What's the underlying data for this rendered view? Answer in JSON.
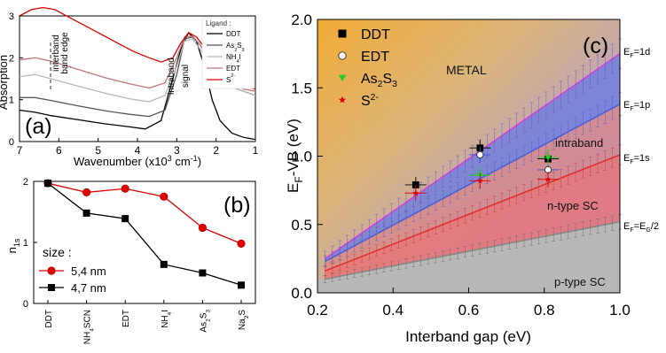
{
  "chart_data": [
    {
      "panel": "(a)",
      "type": "line",
      "xlabel": "Wavenumber (x10",
      "xlabel_sup": "3",
      "xlabel_unit": " cm",
      "xlabel_sup2": "-1",
      "xlabel_end": ")",
      "ylabel": "Absorption",
      "xlim": [
        7,
        1
      ],
      "ylim": [
        0,
        3
      ],
      "xticks": [
        "7",
        "6",
        "5",
        "4",
        "3",
        "2",
        "1"
      ],
      "yticks": [
        "0",
        "1",
        "2",
        "3"
      ],
      "annotations": [
        "interband",
        "band edge",
        "intraband",
        "signal"
      ],
      "legend_title": "Ligand :",
      "series": [
        {
          "name": "DDT",
          "color": "#000000",
          "points": [
            [
              7,
              0.75
            ],
            [
              6.6,
              0.7
            ],
            [
              6.2,
              0.62
            ],
            [
              5.5,
              0.52
            ],
            [
              4.8,
              0.42
            ],
            [
              4.2,
              0.35
            ],
            [
              3.8,
              0.3
            ],
            [
              3.4,
              0.5
            ],
            [
              3.1,
              1.5
            ],
            [
              2.9,
              2.2
            ],
            [
              2.7,
              2.6
            ],
            [
              2.5,
              2.4
            ],
            [
              2.3,
              1.8
            ],
            [
              2.1,
              1.0
            ],
            [
              1.9,
              0.5
            ],
            [
              1.6,
              0.2
            ],
            [
              1.3,
              0.1
            ],
            [
              1.0,
              0.05
            ]
          ]
        },
        {
          "name": "As2S3",
          "color": "#555555",
          "points": [
            [
              7,
              1.05
            ],
            [
              6.6,
              1.05
            ],
            [
              6.2,
              0.98
            ],
            [
              5.5,
              0.85
            ],
            [
              4.8,
              0.73
            ],
            [
              4.2,
              0.65
            ],
            [
              3.7,
              0.6
            ],
            [
              3.3,
              0.75
            ],
            [
              3.0,
              1.6
            ],
            [
              2.8,
              2.45
            ],
            [
              2.6,
              2.5
            ],
            [
              2.4,
              2.3
            ],
            [
              2.2,
              2.0
            ],
            [
              2.0,
              1.8
            ],
            [
              1.8,
              1.5
            ],
            [
              1.6,
              1.3
            ],
            [
              1.3,
              1.2
            ],
            [
              1.0,
              1.1
            ]
          ]
        },
        {
          "name": "NH4I",
          "color": "#b8b8b8",
          "points": [
            [
              7,
              1.55
            ],
            [
              6.6,
              1.6
            ],
            [
              6.2,
              1.5
            ],
            [
              5.5,
              1.32
            ],
            [
              4.8,
              1.15
            ],
            [
              4.2,
              1.02
            ],
            [
              3.7,
              0.95
            ],
            [
              3.3,
              1.1
            ],
            [
              3.0,
              1.8
            ],
            [
              2.8,
              2.4
            ],
            [
              2.6,
              2.45
            ],
            [
              2.4,
              2.2
            ],
            [
              2.2,
              1.95
            ],
            [
              2.0,
              1.75
            ],
            [
              1.8,
              1.5
            ],
            [
              1.6,
              1.3
            ],
            [
              1.3,
              1.2
            ],
            [
              1.0,
              1.1
            ]
          ]
        },
        {
          "name": "EDT",
          "color": "#c07878",
          "points": [
            [
              7,
              1.95
            ],
            [
              6.6,
              2.0
            ],
            [
              6.2,
              1.92
            ],
            [
              5.5,
              1.72
            ],
            [
              4.8,
              1.52
            ],
            [
              4.2,
              1.38
            ],
            [
              3.7,
              1.28
            ],
            [
              3.3,
              1.4
            ],
            [
              3.0,
              2.0
            ],
            [
              2.8,
              2.5
            ],
            [
              2.6,
              2.52
            ],
            [
              2.4,
              2.3
            ],
            [
              2.2,
              2.05
            ],
            [
              2.0,
              1.85
            ],
            [
              1.8,
              1.6
            ],
            [
              1.6,
              1.4
            ],
            [
              1.3,
              1.25
            ],
            [
              1.0,
              1.2
            ]
          ]
        },
        {
          "name": "S2-",
          "color": "#e00000",
          "points": [
            [
              7,
              3.0
            ],
            [
              6.7,
              3.15
            ],
            [
              6.4,
              3.25
            ],
            [
              6.1,
              3.15
            ],
            [
              5.7,
              2.95
            ],
            [
              5.3,
              2.75
            ],
            [
              4.9,
              2.55
            ],
            [
              4.5,
              2.35
            ],
            [
              4.1,
              2.15
            ],
            [
              3.7,
              2.0
            ],
            [
              3.4,
              1.9
            ],
            [
              3.1,
              2.0
            ],
            [
              2.9,
              2.35
            ],
            [
              2.7,
              2.6
            ],
            [
              2.5,
              2.5
            ],
            [
              2.3,
              2.25
            ],
            [
              2.1,
              2.05
            ],
            [
              1.9,
              1.8
            ],
            [
              1.7,
              1.55
            ],
            [
              1.5,
              1.4
            ],
            [
              1.2,
              1.3
            ],
            [
              1.0,
              1.25
            ]
          ]
        }
      ]
    },
    {
      "panel": "(b)",
      "type": "line",
      "ylabel": "n",
      "ylabel_sub": "1s",
      "ylim": [
        0,
        2
      ],
      "yticks": [
        "0",
        "1",
        "2"
      ],
      "categories": [
        "DDT",
        "NH4SCN",
        "EDT",
        "NH4I",
        "As2S3",
        "Na2S"
      ],
      "legend_title": "size :",
      "series": [
        {
          "name": "5,4 nm",
          "color": "#e00000",
          "values": [
            1.97,
            1.82,
            1.88,
            1.75,
            1.24,
            0.98
          ]
        },
        {
          "name": "4,7 nm",
          "color": "#000000",
          "values": [
            1.97,
            1.48,
            1.39,
            0.64,
            0.5,
            0.3
          ]
        }
      ]
    },
    {
      "panel": "(c)",
      "type": "scatter",
      "xlabel": "Interband gap (eV)",
      "ylabel": "E",
      "ylabel_sub": "F",
      "ylabel_end": "-VB (eV)",
      "xlim": [
        0.2,
        1.0
      ],
      "ylim": [
        0.0,
        2.0
      ],
      "xticks": [
        "0.2",
        "0.4",
        "0.6",
        "0.8",
        "1.0"
      ],
      "yticks": [
        "0.0",
        "0.5",
        "1.0",
        "1.5",
        "2.0"
      ],
      "region_labels": [
        "METAL",
        "intraband",
        "n-type SC",
        "p-type SC"
      ],
      "line_labels": [
        {
          "main": "E",
          "sub": "F",
          "tail": "=1d"
        },
        {
          "main": "E",
          "sub": "F",
          "tail": "=1p"
        },
        {
          "main": "E",
          "sub": "F",
          "tail": "=1s"
        },
        {
          "main": "E",
          "sub": "F",
          "tail": "=E",
          "sub2": "G",
          "tail2": "/2"
        }
      ],
      "series": [
        {
          "name": "DDT",
          "marker": "square",
          "color": "#000000",
          "points": [
            [
              0.46,
              0.79
            ],
            [
              0.63,
              1.06
            ],
            [
              0.81,
              0.98
            ]
          ]
        },
        {
          "name": "EDT",
          "marker": "circle",
          "color": "#ffffff",
          "points": [
            [
              0.63,
              1.01
            ],
            [
              0.81,
              0.9
            ]
          ]
        },
        {
          "name": "As2S3",
          "marker": "triangle-down",
          "color": "#22cc22",
          "points": [
            [
              0.63,
              0.86
            ],
            [
              0.81,
              0.99
            ]
          ]
        },
        {
          "name": "S2-",
          "marker": "star",
          "color": "#e00000",
          "points": [
            [
              0.46,
              0.73
            ],
            [
              0.63,
              0.82
            ],
            [
              0.81,
              0.83
            ]
          ]
        }
      ]
    }
  ]
}
